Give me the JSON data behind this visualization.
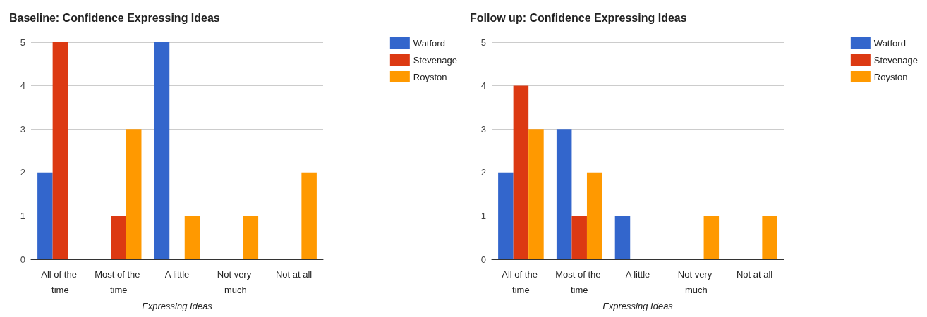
{
  "chart_data": [
    {
      "type": "bar",
      "title": "Baseline: Confidence Expressing Ideas",
      "xlabel": "Expressing Ideas",
      "categories": [
        "All of the time",
        "Most of the time",
        "A little",
        "Not very much",
        "Not at all"
      ],
      "series": [
        {
          "name": "Watford",
          "color": "#3366cc",
          "values": [
            2,
            0,
            5,
            0,
            0
          ]
        },
        {
          "name": "Stevenage",
          "color": "#dc3912",
          "values": [
            5,
            1,
            0,
            0,
            0
          ]
        },
        {
          "name": "Royston",
          "color": "#ff9900",
          "values": [
            0,
            3,
            1,
            1,
            2
          ]
        }
      ],
      "ylim": [
        0,
        5
      ],
      "yticks": [
        0,
        1,
        2,
        3,
        4,
        5
      ],
      "grid": "y",
      "legend": "top right"
    },
    {
      "type": "bar",
      "title": "Follow up: Confidence Expressing Ideas",
      "xlabel": "Expressing Ideas",
      "categories": [
        "All of the time",
        "Most of the time",
        "A little",
        "Not very much",
        "Not at all"
      ],
      "series": [
        {
          "name": "Watford",
          "color": "#3366cc",
          "values": [
            2,
            3,
            1,
            0,
            0
          ]
        },
        {
          "name": "Stevenage",
          "color": "#dc3912",
          "values": [
            4,
            1,
            0,
            0,
            0
          ]
        },
        {
          "name": "Royston",
          "color": "#ff9900",
          "values": [
            3,
            2,
            0,
            1,
            1
          ]
        }
      ],
      "ylim": [
        0,
        5
      ],
      "yticks": [
        0,
        1,
        2,
        3,
        4,
        5
      ],
      "grid": "y",
      "legend": "top right"
    }
  ]
}
